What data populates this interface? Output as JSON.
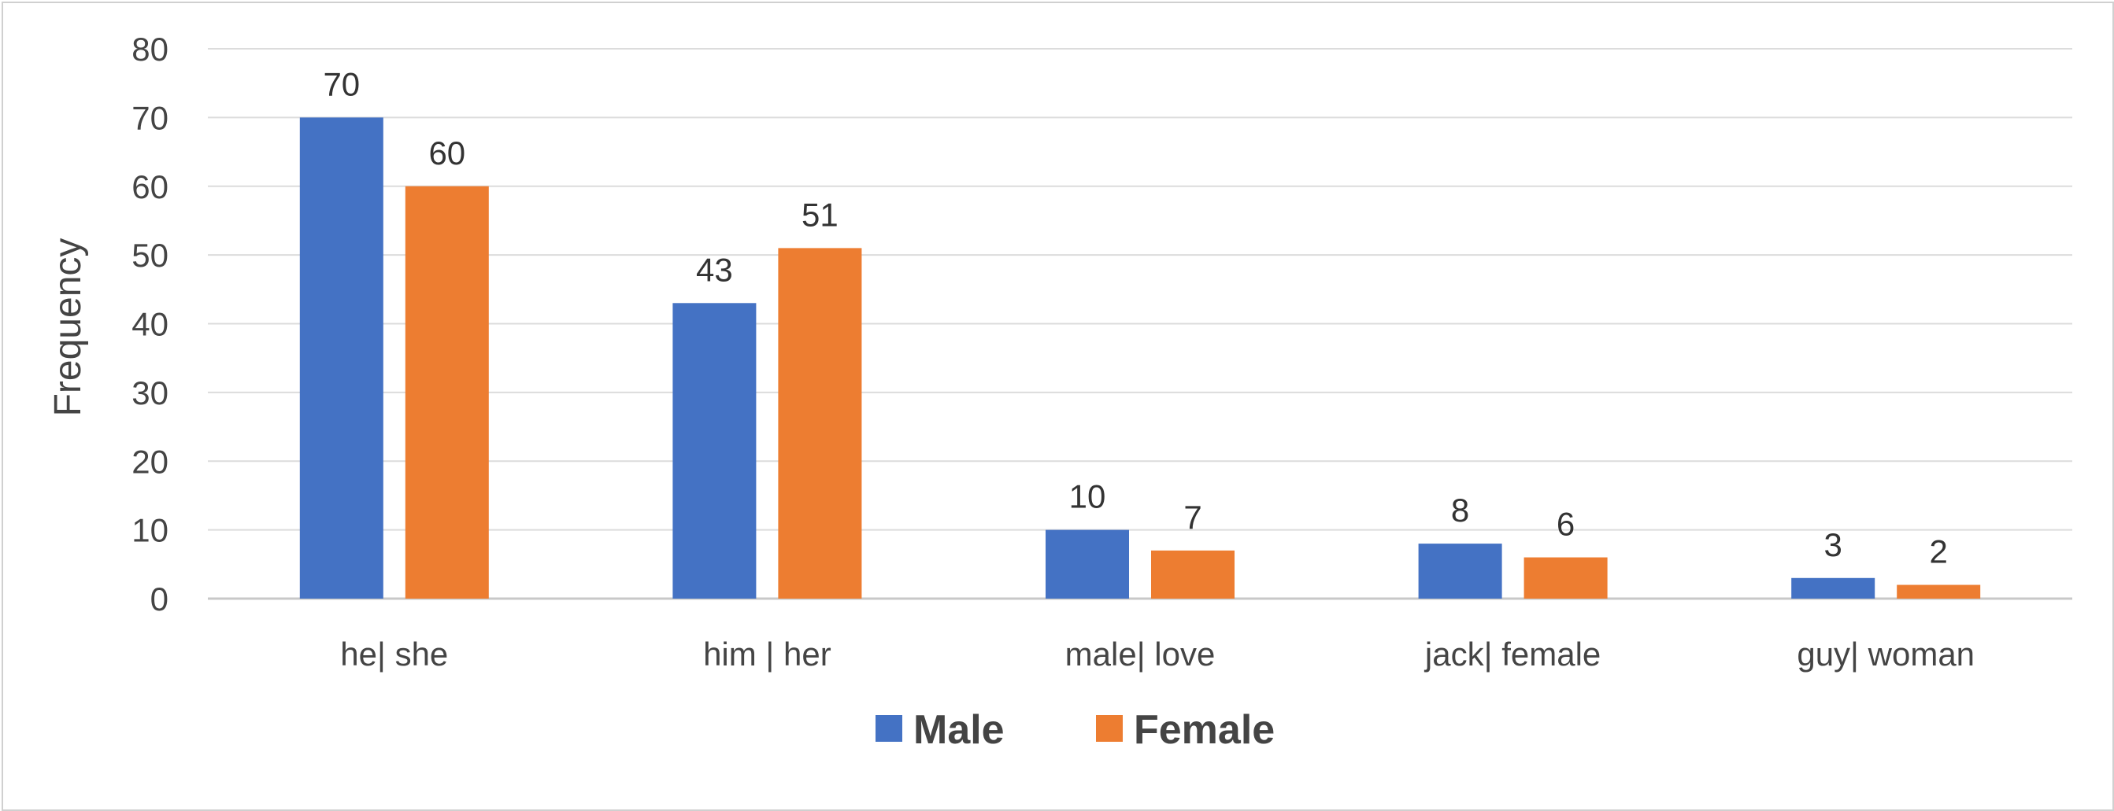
{
  "chart_data": {
    "type": "bar",
    "title": "",
    "xlabel": "",
    "ylabel": "Frequency",
    "ylim": [
      0,
      80
    ],
    "yticks": [
      0,
      10,
      20,
      30,
      40,
      50,
      60,
      70,
      80
    ],
    "grid": true,
    "legend_position": "bottom",
    "categories": [
      "he| she",
      "him | her",
      "male| love",
      "jack| female",
      "guy| woman"
    ],
    "series": [
      {
        "name": "Male",
        "color": "#4472C4",
        "values": [
          70,
          43,
          10,
          8,
          3
        ]
      },
      {
        "name": "Female",
        "color": "#ED7D31",
        "values": [
          60,
          51,
          7,
          6,
          2
        ]
      }
    ],
    "data_labels": true
  }
}
